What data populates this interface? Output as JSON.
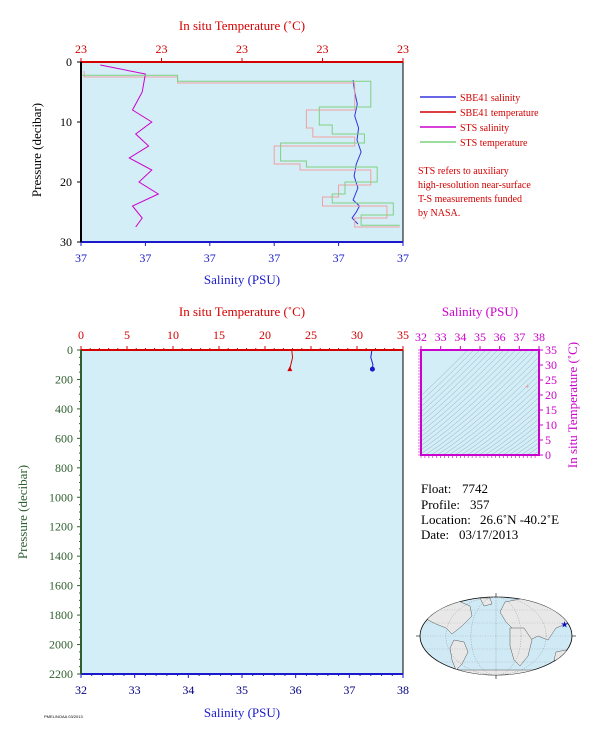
{
  "colors": {
    "plot_bg": "#d4eef8",
    "red": "#d40000",
    "blue": "#1a1acc",
    "magenta": "#cc00cc",
    "green": "#2f5f2f",
    "navy": "#000080",
    "salmon": "#f0a0a0",
    "lightgreen": "#7fd07f",
    "sbe_salinity": "#3333dd",
    "sts_salinity": "#cc00cc"
  },
  "chart_data": [
    {
      "type": "line",
      "title": "",
      "top_axis": {
        "label": "In situ Temperature (˚C)",
        "ticks": [
          "23",
          "23",
          "23",
          "23",
          "23"
        ]
      },
      "bottom_axis": {
        "label": "Salinity (PSU)",
        "ticks": [
          "37",
          "37",
          "37",
          "37",
          "37",
          "37"
        ]
      },
      "left_axis": {
        "label": "Pressure (decibar)",
        "ticks": [
          "0",
          "10",
          "20",
          "30"
        ]
      },
      "ylim": [
        0,
        30
      ],
      "y_inverted": true,
      "xlim_normalized": [
        0,
        1
      ],
      "legend": {
        "placement": "right",
        "entries": [
          "SBE41 salinity",
          "SBE41 temperature",
          "STS salinity",
          "STS temperature"
        ]
      },
      "note": [
        "STS refers to auxiliary",
        "high-resolution near-surface",
        "T-S measurements funded",
        "by NASA."
      ],
      "series": [
        {
          "name": "SBE41 salinity",
          "color": "#3333dd",
          "x_frac": [
            0.845,
            0.85,
            0.858,
            0.85,
            0.862,
            0.857,
            0.87,
            0.855,
            0.848,
            0.86,
            0.845,
            0.865,
            0.855,
            0.842,
            0.86
          ],
          "y": [
            3,
            5,
            7,
            9,
            11,
            13,
            15,
            17,
            19,
            21,
            23,
            24,
            25,
            26,
            27
          ]
        },
        {
          "name": "SBE41 temperature",
          "color": "#f0a0a0",
          "x_frac": [
            0.01,
            0.3,
            0.85,
            0.7,
            0.72,
            0.85,
            0.6,
            0.68,
            0.9,
            0.8,
            0.75,
            0.95,
            0.85,
            0.99
          ],
          "y": [
            1.5,
            2.5,
            3.5,
            8,
            11,
            12.5,
            14,
            17,
            18,
            20.5,
            22.5,
            24,
            26,
            27.5
          ]
        },
        {
          "name": "STS salinity",
          "color": "#cc00cc",
          "x_frac": [
            0.06,
            0.2,
            0.19,
            0.16,
            0.22,
            0.17,
            0.21,
            0.15,
            0.22,
            0.18,
            0.24,
            0.16,
            0.19,
            0.17
          ],
          "y": [
            0.5,
            2,
            5,
            8,
            10,
            12,
            14,
            16,
            18,
            20,
            22,
            24,
            26,
            27.5
          ]
        },
        {
          "name": "STS temperature",
          "color": "#7fd07f",
          "x_frac": [
            0.0,
            0.3,
            0.9,
            0.74,
            0.78,
            0.88,
            0.62,
            0.7,
            0.92,
            0.82,
            0.78,
            0.97,
            0.87,
            0.99
          ],
          "y": [
            1.2,
            2.2,
            3.2,
            7.5,
            10.5,
            12,
            13.5,
            16.5,
            17.5,
            20,
            22,
            23.5,
            25.5,
            27.2
          ]
        }
      ]
    },
    {
      "type": "line",
      "title": "",
      "top_axis": {
        "label": "In situ Temperature (˚C)",
        "ticks": [
          "0",
          "5",
          "10",
          "15",
          "20",
          "25",
          "30",
          "35"
        ],
        "range": [
          0,
          35
        ]
      },
      "bottom_axis": {
        "label": "Salinity (PSU)",
        "ticks": [
          "32",
          "33",
          "34",
          "35",
          "36",
          "37",
          "38"
        ],
        "range": [
          32,
          38
        ]
      },
      "left_axis": {
        "label": "Pressure (decibar)",
        "ticks": [
          "0",
          "200",
          "400",
          "600",
          "800",
          "1000",
          "1200",
          "1400",
          "1600",
          "1800",
          "2000",
          "2200"
        ]
      },
      "ylim": [
        0,
        2200
      ],
      "y_inverted": true,
      "series": [
        {
          "name": "temperature",
          "color": "#d40000",
          "x": [
            22.9,
            23.0,
            22.8,
            22.7
          ],
          "y": [
            0,
            50,
            100,
            130
          ]
        },
        {
          "name": "salinity",
          "color": "#1a1acc",
          "x": [
            37.42,
            37.4,
            37.44,
            37.43
          ],
          "y": [
            0,
            50,
            100,
            130
          ]
        }
      ]
    },
    {
      "type": "scatter",
      "title": "",
      "top_axis": {
        "label": "Salinity (PSU)",
        "ticks": [
          "32",
          "33",
          "34",
          "35",
          "36",
          "37",
          "38"
        ],
        "range": [
          32,
          38
        ]
      },
      "right_axis": {
        "label": "In situ Temperature (˚C)",
        "ticks": [
          "0",
          "5",
          "10",
          "15",
          "20",
          "25",
          "30",
          "35"
        ],
        "range": [
          0,
          35
        ]
      },
      "series": [
        {
          "name": "T-S point",
          "color": "#f08080",
          "x": [
            37.4
          ],
          "y": [
            23
          ]
        }
      ]
    }
  ],
  "info": {
    "float_label": "Float:",
    "float_value": "7742",
    "profile_label": "Profile:",
    "profile_value": "357",
    "location_label": "Location:",
    "location_value": "26.6˚N  -40.2˚E",
    "date_label": "Date:",
    "date_value": "03/17/2013"
  },
  "map": {
    "marker_lat": 26.6,
    "marker_lon": -40.2
  },
  "footer_text": "PMEL/NOAA 03/2013"
}
